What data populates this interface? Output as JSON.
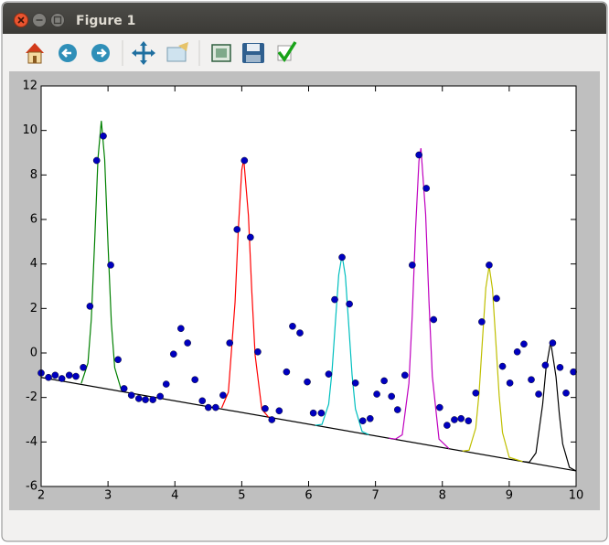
{
  "window": {
    "title": "Figure 1"
  },
  "chart_data": {
    "type": "scatter",
    "xlim": [
      2,
      10
    ],
    "ylim": [
      -6,
      12
    ],
    "xticks": [
      2,
      3,
      4,
      5,
      6,
      7,
      8,
      9,
      10
    ],
    "yticks": [
      -6,
      -4,
      -2,
      0,
      2,
      4,
      6,
      8,
      10,
      12
    ],
    "series": [
      {
        "type": "scatter",
        "color": "#0000bf",
        "x": [
          2.0,
          2.11,
          2.21,
          2.31,
          2.42,
          2.52,
          2.63,
          2.73,
          2.83,
          2.93,
          3.04,
          3.15,
          3.24,
          3.35,
          3.46,
          3.56,
          3.67,
          3.78,
          3.87,
          3.98,
          4.09,
          4.19,
          4.3,
          4.41,
          4.5,
          4.61,
          4.72,
          4.82,
          4.93,
          5.04,
          5.13,
          5.24,
          5.35,
          5.45,
          5.56,
          5.67,
          5.76,
          5.87,
          5.98,
          6.07,
          6.19,
          6.3,
          6.39,
          6.5,
          6.61,
          6.7,
          6.81,
          6.92,
          7.02,
          7.13,
          7.24,
          7.33,
          7.44,
          7.55,
          7.65,
          7.76,
          7.87,
          7.96,
          8.07,
          8.18,
          8.28,
          8.39,
          8.5,
          8.59,
          8.7,
          8.81,
          8.9,
          9.01,
          9.12,
          9.22,
          9.33,
          9.44,
          9.54,
          9.65,
          9.76,
          9.85,
          9.96
        ],
        "values": [
          -0.9,
          -1.1,
          -1.0,
          -1.15,
          -1.0,
          -1.05,
          -0.65,
          2.1,
          8.65,
          9.75,
          3.95,
          -0.3,
          -1.6,
          -1.9,
          -2.05,
          -2.1,
          -2.1,
          -1.95,
          -1.4,
          -0.05,
          1.1,
          0.45,
          -1.2,
          -2.15,
          -2.45,
          -2.45,
          -1.9,
          0.45,
          5.55,
          8.65,
          5.2,
          0.05,
          -2.5,
          -3.0,
          -2.6,
          -0.85,
          1.2,
          0.9,
          -1.3,
          -2.7,
          -2.7,
          -0.95,
          2.4,
          4.3,
          2.2,
          -1.35,
          -3.05,
          -2.95,
          -1.85,
          -1.25,
          -1.95,
          -2.55,
          -1.0,
          3.95,
          8.9,
          7.4,
          1.5,
          -2.45,
          -3.25,
          -3.0,
          -2.95,
          -3.05,
          -1.8,
          1.4,
          3.95,
          2.45,
          -0.6,
          -1.35,
          0.05,
          0.4,
          -1.2,
          -1.85,
          -0.55,
          0.45,
          -0.65,
          -1.8,
          -0.85
        ]
      },
      {
        "type": "line",
        "color": "#000000",
        "x": [
          2,
          10
        ],
        "values": [
          -1.1,
          -5.3
        ]
      },
      {
        "type": "line",
        "color": "#008000",
        "x": [
          2.6,
          2.7,
          2.75,
          2.8,
          2.85,
          2.9,
          2.95,
          3.0,
          3.05,
          3.1,
          3.2
        ],
        "values": [
          -1.37,
          -0.45,
          1.51,
          4.98,
          8.75,
          10.43,
          8.7,
          4.87,
          1.35,
          -0.66,
          -1.68
        ]
      },
      {
        "type": "line",
        "color": "#ff0000",
        "x": [
          4.7,
          4.8,
          4.9,
          4.95,
          5.0,
          5.03,
          5.1,
          5.15,
          5.2,
          5.3,
          5.4
        ],
        "values": [
          -2.47,
          -1.76,
          2.28,
          5.63,
          8.22,
          8.71,
          6.17,
          2.79,
          -0.09,
          -2.53,
          -2.88
        ]
      },
      {
        "type": "line",
        "color": "#00bfbf",
        "x": [
          6.1,
          6.2,
          6.3,
          6.35,
          6.4,
          6.45,
          6.5,
          6.55,
          6.6,
          6.65,
          6.7,
          6.8,
          6.9
        ],
        "values": [
          -3.25,
          -3.21,
          -2.3,
          -0.83,
          1.36,
          3.5,
          4.4,
          3.45,
          1.26,
          -0.99,
          -2.51,
          -3.53,
          -3.67
        ]
      },
      {
        "type": "line",
        "color": "#bf00bf",
        "x": [
          7.2,
          7.3,
          7.4,
          7.5,
          7.55,
          7.6,
          7.65,
          7.68,
          7.75,
          7.8,
          7.85,
          7.95,
          8.1
        ],
        "values": [
          -3.83,
          -3.87,
          -3.68,
          -1.36,
          1.7,
          5.6,
          8.63,
          9.2,
          6.24,
          2.32,
          -1.04,
          -3.87,
          -4.3
        ]
      },
      {
        "type": "line",
        "color": "#bfbf00",
        "x": [
          8.3,
          8.4,
          8.5,
          8.55,
          8.6,
          8.65,
          8.7,
          8.75,
          8.8,
          8.85,
          8.9,
          9.0,
          9.2
        ],
        "values": [
          -4.41,
          -4.37,
          -3.37,
          -1.77,
          0.6,
          2.92,
          3.9,
          2.87,
          0.5,
          -1.93,
          -3.58,
          -4.69,
          -4.88
        ]
      },
      {
        "type": "line",
        "color": "#000000",
        "x": [
          9.2,
          9.3,
          9.4,
          9.5,
          9.55,
          9.62,
          9.7,
          9.75,
          9.8,
          9.9,
          10.0
        ],
        "values": [
          -4.88,
          -4.91,
          -4.49,
          -2.31,
          -0.7,
          0.5,
          -1.07,
          -2.76,
          -4.09,
          -5.14,
          -5.3
        ]
      }
    ]
  }
}
